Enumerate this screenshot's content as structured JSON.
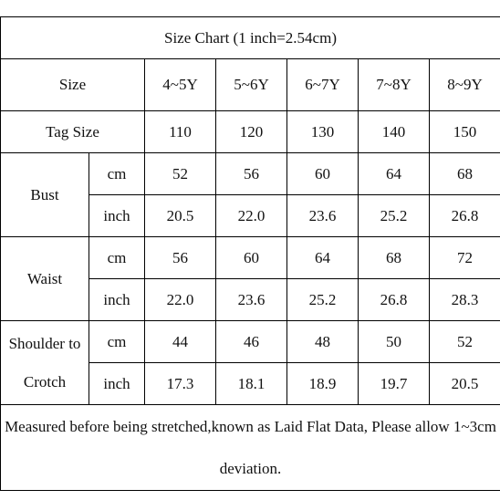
{
  "table": {
    "title": "Size Chart (1 inch=2.54cm)",
    "header": {
      "label": "Size",
      "sizes": [
        "4~5Y",
        "5~6Y",
        "6~7Y",
        "7~8Y",
        "8~9Y"
      ]
    },
    "tag_size": {
      "label": "Tag Size",
      "values": [
        "110",
        "120",
        "130",
        "140",
        "150"
      ]
    },
    "measurements": [
      {
        "label": "Bust",
        "rows": [
          {
            "unit": "cm",
            "values": [
              "52",
              "56",
              "60",
              "64",
              "68"
            ]
          },
          {
            "unit": "inch",
            "values": [
              "20.5",
              "22.0",
              "23.6",
              "25.2",
              "26.8"
            ]
          }
        ]
      },
      {
        "label": "Waist",
        "rows": [
          {
            "unit": "cm",
            "values": [
              "56",
              "60",
              "64",
              "68",
              "72"
            ]
          },
          {
            "unit": "inch",
            "values": [
              "22.0",
              "23.6",
              "25.2",
              "26.8",
              "28.3"
            ]
          }
        ]
      },
      {
        "label": "Shoulder to Crotch",
        "rows": [
          {
            "unit": "cm",
            "values": [
              "44",
              "46",
              "48",
              "50",
              "52"
            ]
          },
          {
            "unit": "inch",
            "values": [
              "17.3",
              "18.1",
              "18.9",
              "19.7",
              "20.5"
            ]
          }
        ]
      }
    ],
    "note": "Measured before being stretched,known as Laid Flat Data, Please allow 1~3cm deviation."
  }
}
